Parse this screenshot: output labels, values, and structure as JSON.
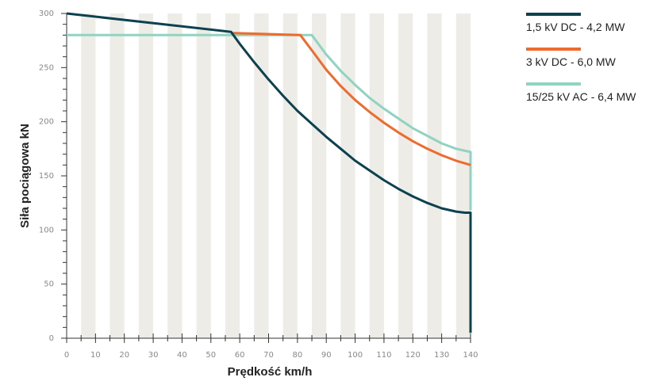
{
  "chart_data": {
    "type": "line",
    "title": "",
    "xlabel": "Prędkość km/h",
    "ylabel": "Siła pociągowa kN",
    "xlim": [
      0,
      140
    ],
    "ylim": [
      0,
      300
    ],
    "x_ticks": [
      0,
      10,
      20,
      30,
      40,
      50,
      60,
      70,
      80,
      90,
      100,
      110,
      120,
      130,
      140
    ],
    "y_ticks": [
      0,
      50,
      100,
      150,
      200,
      250,
      300
    ],
    "background_stripes": true,
    "legend_position": "right-top",
    "series": [
      {
        "name": "1,5 kV DC - 4,2 MW",
        "color": "#0c4150",
        "points": [
          [
            0,
            300
          ],
          [
            57,
            283
          ],
          [
            60,
            272
          ],
          [
            65,
            255
          ],
          [
            70,
            239
          ],
          [
            75,
            224
          ],
          [
            80,
            210
          ],
          [
            85,
            198
          ],
          [
            90,
            186
          ],
          [
            95,
            175
          ],
          [
            100,
            164
          ],
          [
            105,
            155
          ],
          [
            110,
            146
          ],
          [
            115,
            138
          ],
          [
            120,
            131
          ],
          [
            125,
            125
          ],
          [
            130,
            120
          ],
          [
            135,
            117
          ],
          [
            138,
            116
          ],
          [
            140,
            116
          ],
          [
            140,
            5
          ]
        ]
      },
      {
        "name": "3 kV DC - 6,0 MW",
        "color": "#ef6b2d",
        "points": [
          [
            57,
            282
          ],
          [
            81,
            280
          ],
          [
            85,
            266
          ],
          [
            90,
            248
          ],
          [
            95,
            233
          ],
          [
            100,
            220
          ],
          [
            105,
            209
          ],
          [
            110,
            199
          ],
          [
            115,
            190
          ],
          [
            120,
            182
          ],
          [
            125,
            175
          ],
          [
            130,
            169
          ],
          [
            135,
            164
          ],
          [
            140,
            160
          ]
        ]
      },
      {
        "name": "15/25 kV AC - 6,4 MW",
        "color": "#8fd3c0",
        "points": [
          [
            0,
            280
          ],
          [
            85,
            280
          ],
          [
            90,
            262
          ],
          [
            95,
            247
          ],
          [
            100,
            234
          ],
          [
            105,
            222
          ],
          [
            110,
            212
          ],
          [
            115,
            203
          ],
          [
            120,
            194
          ],
          [
            125,
            187
          ],
          [
            130,
            180
          ],
          [
            135,
            175
          ],
          [
            140,
            172
          ],
          [
            140,
            118
          ]
        ]
      }
    ]
  }
}
